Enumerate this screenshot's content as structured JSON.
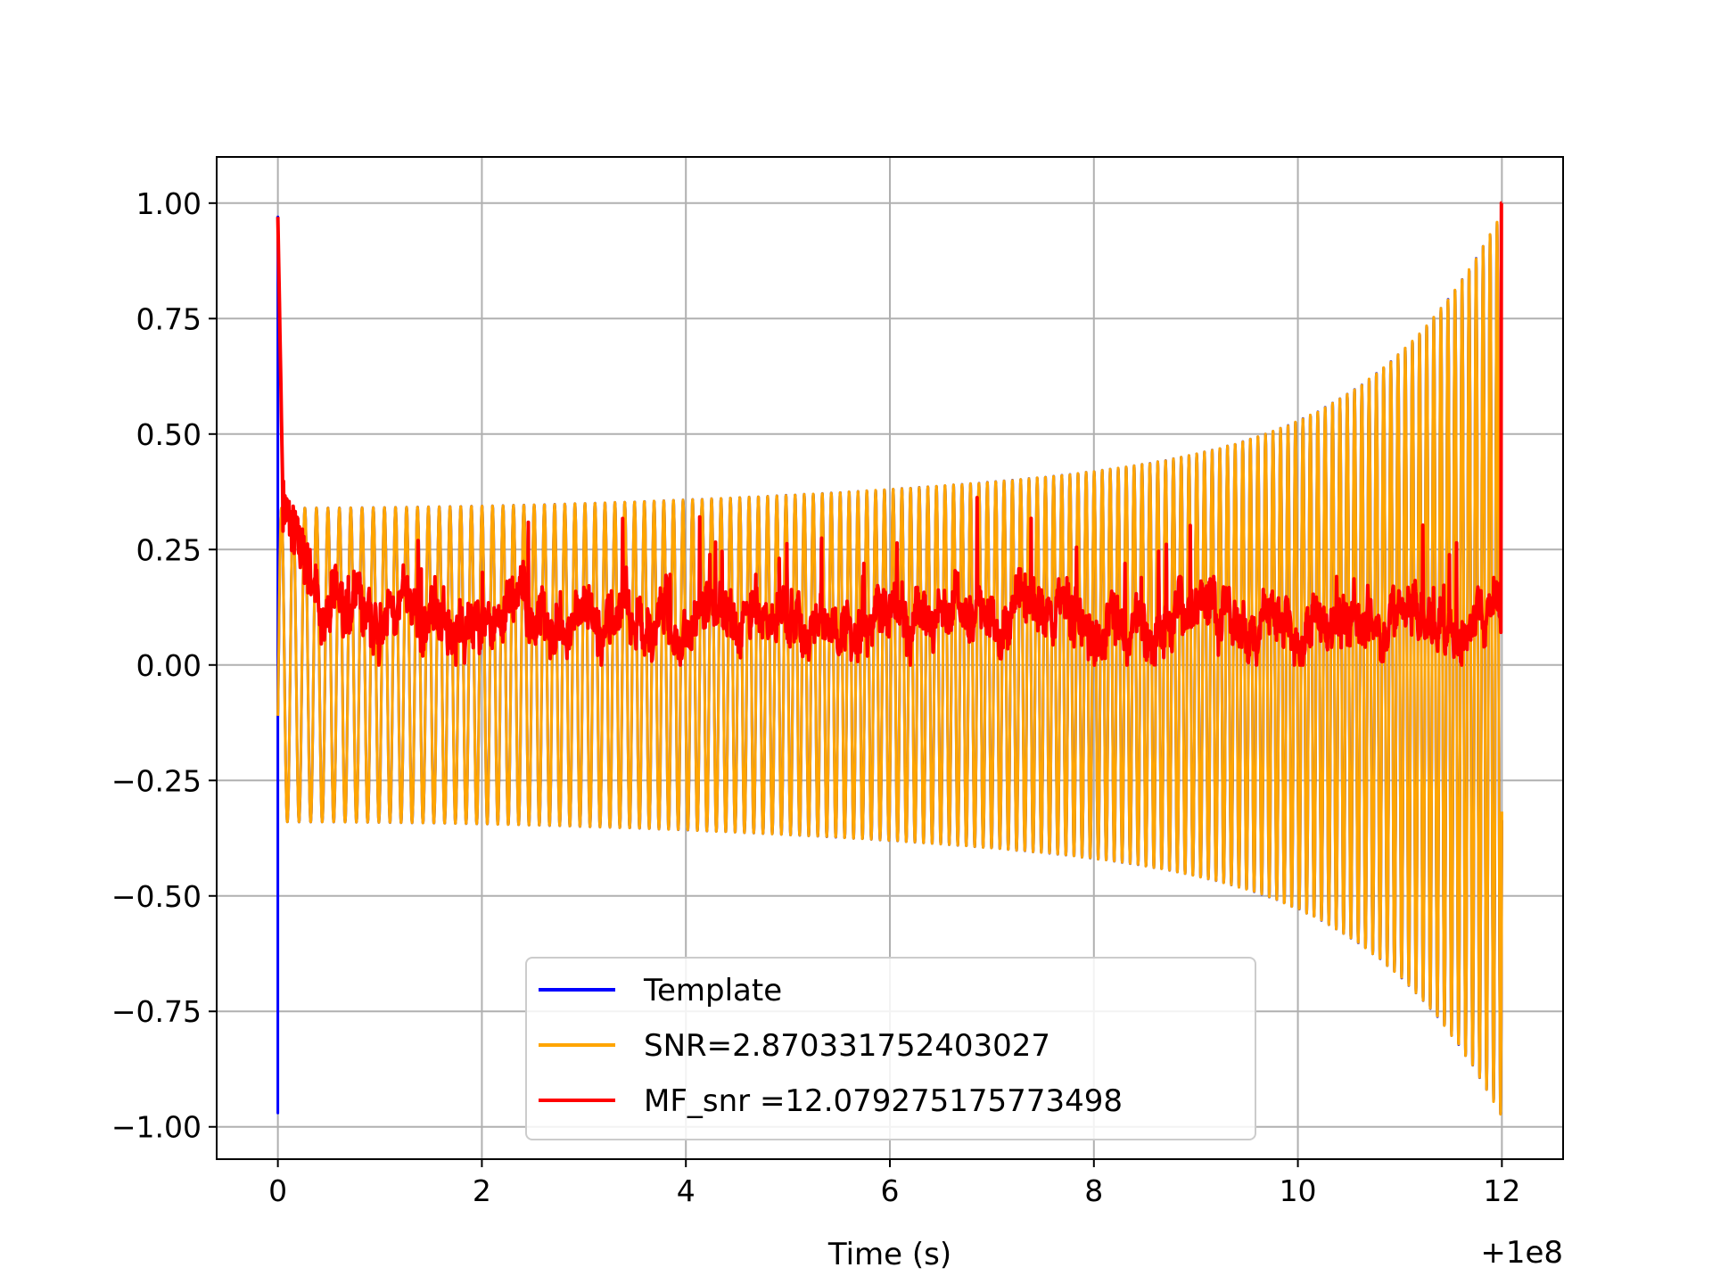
{
  "chart_data": {
    "type": "line",
    "title": "",
    "xlabel": "Time (s)",
    "ylabel": "",
    "x_offset_label": "+1e8",
    "xlim": [
      -0.6,
      12.6
    ],
    "ylim": [
      -1.07,
      1.1
    ],
    "xticks": [
      0,
      2,
      4,
      6,
      8,
      10,
      12
    ],
    "xtick_labels": [
      "0",
      "2",
      "4",
      "6",
      "8",
      "10",
      "12"
    ],
    "yticks": [
      1.0,
      0.75,
      0.5,
      0.25,
      0.0,
      -0.25,
      -0.5,
      -0.75,
      -1.0
    ],
    "ytick_labels": [
      "1.00",
      "0.75",
      "0.50",
      "0.25",
      "0.00",
      "−0.25",
      "−0.50",
      "−0.75",
      "−1.00"
    ],
    "grid": true,
    "legend_position": "lower-center",
    "series": [
      {
        "name": "Template",
        "color": "#0000ff",
        "description_shape": "chirp",
        "t_start": 0.0,
        "t_end": 12.0,
        "initial_spike": 0.97,
        "start_amplitude": 0.34,
        "end_amplitude": 0.98,
        "cycles": 140
      },
      {
        "name": "SNR=2.870331752403027",
        "color": "#ffa500",
        "description_shape": "chirp",
        "t_start": 0.0,
        "t_end": 12.0,
        "start_amplitude": 0.34,
        "end_amplitude": 0.98,
        "cycles": 140
      },
      {
        "name": "MF_snr =12.079275175773498",
        "color": "#ff0000",
        "description_shape": "noisy",
        "t_start": 0.0,
        "t_end": 12.0,
        "start_value": 0.97,
        "baseline": 0.1,
        "baseline_spread": 0.07,
        "end_peak": 1.0
      }
    ]
  }
}
